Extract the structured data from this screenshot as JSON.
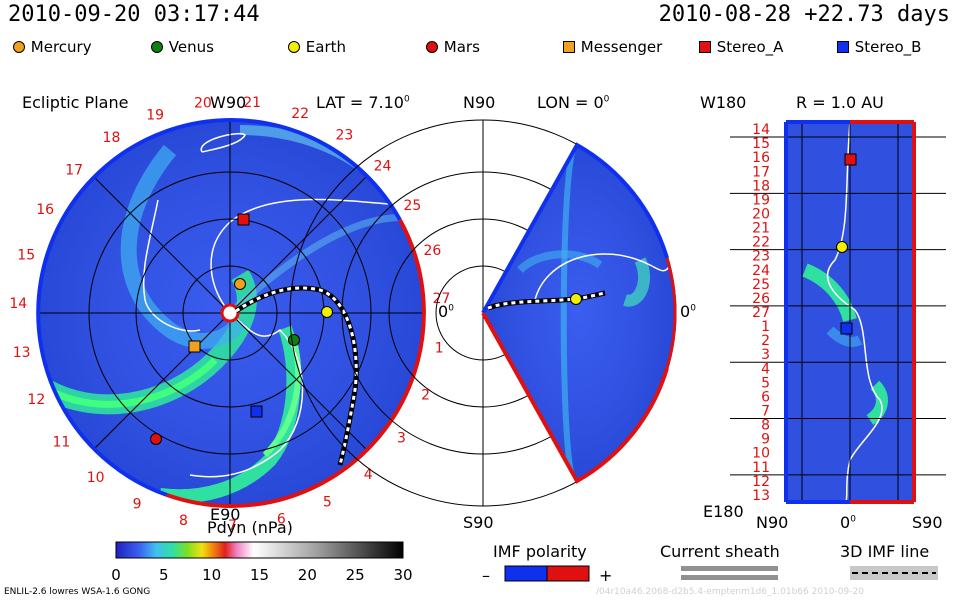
{
  "header": {
    "left_datetime": "2010-09-20 03:17:44",
    "right_datetime": "2010-08-28 +22.73 days"
  },
  "legend": [
    {
      "name": "Mercury",
      "color": "#f0a020",
      "shape": "circle"
    },
    {
      "name": "Venus",
      "color": "#108010",
      "shape": "circle"
    },
    {
      "name": "Earth",
      "color": "#f0f000",
      "shape": "circle"
    },
    {
      "name": "Mars",
      "color": "#e01010",
      "shape": "circle"
    },
    {
      "name": "Messenger",
      "color": "#f0a020",
      "shape": "square"
    },
    {
      "name": "Stereo_A",
      "color": "#e01010",
      "shape": "square"
    },
    {
      "name": "Stereo_B",
      "color": "#1030f0",
      "shape": "square"
    }
  ],
  "panels": {
    "ecliptic": {
      "title": "Ecliptic Plane",
      "top_label": "W90",
      "lat_label": "LAT = 7.10",
      "lat_sup": "0",
      "right_label": "0",
      "right_sup": "0",
      "bottom_label": "E90",
      "carrington_numbers": [
        "18",
        "19",
        "20",
        "21",
        "22",
        "23",
        "24",
        "25",
        "26",
        "27",
        "1",
        "2",
        "3",
        "4",
        "5",
        "6",
        "7",
        "8",
        "9",
        "10",
        "11",
        "12",
        "13",
        "14",
        "15",
        "16",
        "17"
      ]
    },
    "meridional": {
      "top_label": "N90",
      "lon_label": "LON = 0",
      "lon_sup": "0",
      "right_label": "0",
      "right_sup": "0",
      "bottom_label": "S90"
    },
    "synoptic": {
      "title": "R = 1.0 AU",
      "top_left_label": "W180",
      "bottom_left_label": "E180",
      "x_labels": [
        "N90",
        "0",
        "S90"
      ],
      "x_label_sup": "0",
      "y_labels": [
        "14",
        "15",
        "16",
        "17",
        "18",
        "19",
        "20",
        "21",
        "22",
        "23",
        "24",
        "25",
        "26",
        "27",
        "1",
        "2",
        "3",
        "4",
        "5",
        "6",
        "7",
        "8",
        "9",
        "10",
        "11",
        "12",
        "13"
      ]
    }
  },
  "chart_data": {
    "type": "heatmap",
    "title": "Pdyn (nPa)",
    "colorbar": {
      "label": "Pdyn (nPa)",
      "range": [
        0,
        30
      ],
      "ticks": [
        "0",
        "5",
        "10",
        "15",
        "20",
        "25",
        "30"
      ]
    },
    "objects": [
      {
        "name": "Mercury",
        "ecliptic": {
          "r_au": 0.33,
          "angle_deg": 80
        }
      },
      {
        "name": "Venus",
        "ecliptic": {
          "r_au": 0.72,
          "angle_deg": -30
        }
      },
      {
        "name": "Earth",
        "ecliptic": {
          "r_au": 1.0,
          "angle_deg": 0
        },
        "meridional": {
          "r_au": 1.0,
          "lat_deg": 7.1
        },
        "synoptic": {
          "carrington": 23,
          "lat_deg": 7.1
        }
      },
      {
        "name": "Mars",
        "ecliptic": {
          "r_au": 1.45,
          "angle_deg": -120
        }
      },
      {
        "name": "Messenger",
        "ecliptic": {
          "r_au": 0.45,
          "angle_deg": -150
        }
      },
      {
        "name": "Stereo_A",
        "ecliptic": {
          "r_au": 0.98,
          "angle_deg": 87
        },
        "synoptic": {
          "carrington": 17,
          "lat_deg": 0
        }
      },
      {
        "name": "Stereo_B",
        "ecliptic": {
          "r_au": 1.05,
          "angle_deg": -67
        },
        "synoptic": {
          "carrington": 1,
          "lat_deg": 3
        }
      }
    ]
  },
  "footer": {
    "imf_title": "IMF polarity",
    "imf_minus": "–",
    "imf_plus": "+",
    "sheath_title": "Current sheath",
    "imf_line_title": "3D IMF line",
    "model_text": "ENLIL-2.6 lowres WSA-1.6 GONG",
    "watermark": "/04r10a46.2068-d2b5.4-emptenm1d6_1.01b66    2010-09-20"
  }
}
